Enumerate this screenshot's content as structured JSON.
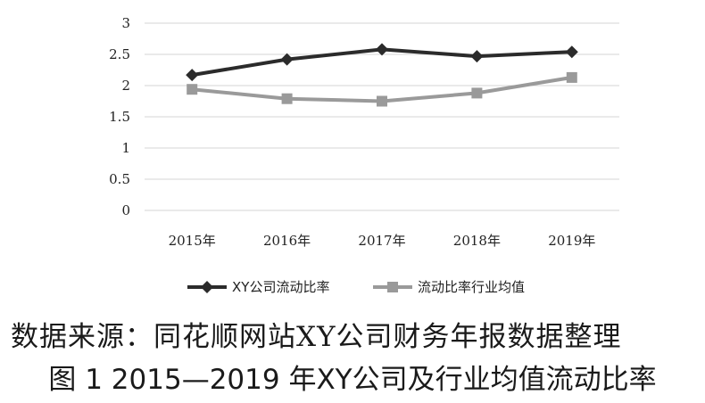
{
  "chart_data": {
    "type": "line",
    "categories": [
      "2015年",
      "2016年",
      "2017年",
      "2018年",
      "2019年"
    ],
    "series": [
      {
        "name": "XY公司流动比率",
        "values": [
          2.17,
          2.42,
          2.58,
          2.47,
          2.54
        ],
        "color": "#2b2b2b",
        "marker": "diamond"
      },
      {
        "name": "流动比率行业均值",
        "values": [
          1.94,
          1.79,
          1.75,
          1.88,
          2.13
        ],
        "color": "#9a9a9a",
        "marker": "square"
      }
    ],
    "yticks": [
      "0",
      "0.5",
      "1",
      "1.5",
      "2",
      "2.5",
      "3"
    ],
    "ylim": [
      0,
      3
    ],
    "grid": true,
    "legend_position": "bottom"
  },
  "source_note": "数据来源：同花顺网站XY公司财务年报数据整理",
  "caption": "图 1  2015—2019 年XY公司及行业均值流动比率"
}
